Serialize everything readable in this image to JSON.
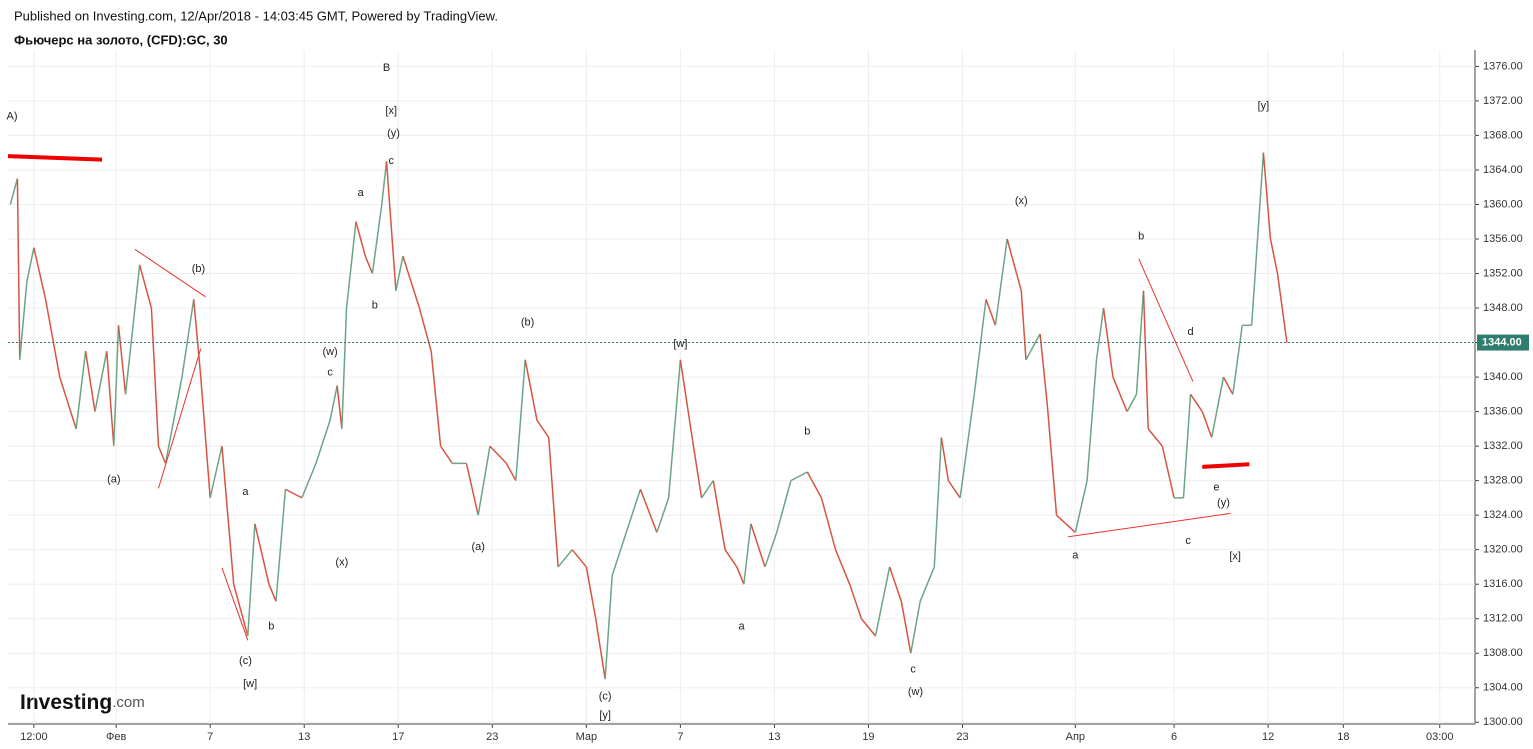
{
  "chart_data": {
    "type": "line",
    "published": "Published on Investing.com, 12/Apr/2018 - 14:03:45 GMT, Powered by TradingView.",
    "title": "Фьючерс на золото, (CFD):GC, 30",
    "logo": {
      "brand": "Investing",
      "suffix": ".com"
    },
    "up_color": "#6ba583",
    "down_color": "#d75442",
    "grid": true,
    "xlim": [
      -1.1,
      61.3
    ],
    "ylim": [
      1299.8,
      1377.9
    ],
    "xticks": [
      {
        "value": 0,
        "label": "12:00"
      },
      {
        "value": 3.5,
        "label": "Фев"
      },
      {
        "value": 7.5,
        "label": "7"
      },
      {
        "value": 11.5,
        "label": "13"
      },
      {
        "value": 15.5,
        "label": "17"
      },
      {
        "value": 19.5,
        "label": "23"
      },
      {
        "value": 23.5,
        "label": "Мар"
      },
      {
        "value": 27.5,
        "label": "7"
      },
      {
        "value": 31.5,
        "label": "13"
      },
      {
        "value": 35.5,
        "label": "19"
      },
      {
        "value": 39.5,
        "label": "23"
      },
      {
        "value": 44.3,
        "label": "Апр"
      },
      {
        "value": 48.5,
        "label": "6"
      },
      {
        "value": 52.5,
        "label": "12"
      },
      {
        "value": 55.7,
        "label": "18"
      },
      {
        "value": 59.8,
        "label": "03:00"
      }
    ],
    "yticks": [
      {
        "value": 1300,
        "label": "1300.00"
      },
      {
        "value": 1304,
        "label": "1304.00"
      },
      {
        "value": 1308,
        "label": "1308.00"
      },
      {
        "value": 1312,
        "label": "1312.00"
      },
      {
        "value": 1316,
        "label": "1316.00"
      },
      {
        "value": 1320,
        "label": "1320.00"
      },
      {
        "value": 1324,
        "label": "1324.00"
      },
      {
        "value": 1328,
        "label": "1328.00"
      },
      {
        "value": 1332,
        "label": "1332.00"
      },
      {
        "value": 1336,
        "label": "1336.00"
      },
      {
        "value": 1340,
        "label": "1340.00"
      },
      {
        "value": 1344,
        "label": "1344.00"
      },
      {
        "value": 1348,
        "label": "1348.00"
      },
      {
        "value": 1352,
        "label": "1352.00"
      },
      {
        "value": 1356,
        "label": "1356.00"
      },
      {
        "value": 1360,
        "label": "1360.00"
      },
      {
        "value": 1364,
        "label": "1364.00"
      },
      {
        "value": 1368,
        "label": "1368.00"
      },
      {
        "value": 1372,
        "label": "1372.00"
      },
      {
        "value": 1376,
        "label": "1376.00"
      }
    ],
    "last_price": {
      "value": 1344,
      "label": "1344.00",
      "color": "#2e7d6e"
    },
    "x": [
      -1.0,
      -0.7,
      -0.6,
      -0.3,
      0,
      0.5,
      1.1,
      1.8,
      2.2,
      2.6,
      3.1,
      3.4,
      3.6,
      3.9,
      4.5,
      5.0,
      5.3,
      5.6,
      6.3,
      6.8,
      7.1,
      7.5,
      8.0,
      8.5,
      9.1,
      9.4,
      10.0,
      10.3,
      10.7,
      11.4,
      12.0,
      12.6,
      12.9,
      13.1,
      13.3,
      13.7,
      14.1,
      14.4,
      14.8,
      15.0,
      15.4,
      15.7,
      16.4,
      16.9,
      17.3,
      17.8,
      18.4,
      18.9,
      19.4,
      20.1,
      20.5,
      20.9,
      21.4,
      21.9,
      22.3,
      22.9,
      23.5,
      23.9,
      24.3,
      24.6,
      25.2,
      25.8,
      26.5,
      27.0,
      27.5,
      28.0,
      28.4,
      28.9,
      29.4,
      29.9,
      30.2,
      30.5,
      31.1,
      31.6,
      32.2,
      32.9,
      33.5,
      34.1,
      34.7,
      35.2,
      35.8,
      36.4,
      36.9,
      37.3,
      37.7,
      38.3,
      38.6,
      38.9,
      39.4,
      40.0,
      40.5,
      40.9,
      41.4,
      41.8,
      42.0,
      42.2,
      42.8,
      43.1,
      43.5,
      43.9,
      44.3,
      44.8,
      45.2,
      45.5,
      45.9,
      46.5,
      46.9,
      47.2,
      47.4,
      48.0,
      48.5,
      48.9,
      49.2,
      49.7,
      50.1,
      50.6,
      51.0,
      51.4,
      51.8,
      52.3,
      52.6,
      52.9,
      53.3
    ],
    "values": [
      1360,
      1363,
      1342,
      1351,
      1355,
      1349,
      1340,
      1334,
      1343,
      1336,
      1343,
      1332,
      1346,
      1338,
      1353,
      1348,
      1332,
      1330,
      1340,
      1349,
      1340,
      1326,
      1332,
      1316,
      1310,
      1323,
      1316,
      1314,
      1327,
      1326,
      1330,
      1335,
      1339,
      1334,
      1348,
      1358,
      1354,
      1352,
      1360,
      1365,
      1350,
      1354,
      1348,
      1343,
      1332,
      1330,
      1330,
      1324,
      1332,
      1330,
      1328,
      1342,
      1335,
      1333,
      1318,
      1320,
      1318,
      1312,
      1305,
      1317,
      1322,
      1327,
      1322,
      1326,
      1342,
      1333,
      1326,
      1328,
      1320,
      1318,
      1316,
      1323,
      1318,
      1322,
      1328,
      1329,
      1326,
      1320,
      1316,
      1312,
      1310,
      1318,
      1314,
      1308,
      1314,
      1318,
      1333,
      1328,
      1326,
      1338,
      1349,
      1346,
      1356,
      1352,
      1350,
      1342,
      1345,
      1337,
      1324,
      1323,
      1322,
      1328,
      1342,
      1348,
      1340,
      1336,
      1338,
      1350,
      1334,
      1332,
      1326,
      1326,
      1338,
      1336,
      1333,
      1340,
      1338,
      1346,
      1346,
      1366,
      1356,
      1352,
      1344
    ],
    "annotations": [
      {
        "text": "A)",
        "x": -1.0,
        "y": 1370.2
      },
      {
        "text": "B",
        "x": 15.0,
        "y": 1375.8
      },
      {
        "text": "[x]",
        "x": 15.2,
        "y": 1370.8
      },
      {
        "text": "(y)",
        "x": 15.3,
        "y": 1368.2
      },
      {
        "text": "c",
        "x": 15.2,
        "y": 1365.0
      },
      {
        "text": "a",
        "x": 13.9,
        "y": 1361.3
      },
      {
        "text": "(b)",
        "x": 7.0,
        "y": 1352.5
      },
      {
        "text": "b",
        "x": 14.5,
        "y": 1348.3
      },
      {
        "text": "(w)",
        "x": 12.6,
        "y": 1342.9
      },
      {
        "text": "c",
        "x": 12.6,
        "y": 1340.5
      },
      {
        "text": "(x)",
        "x": 13.1,
        "y": 1318.5
      },
      {
        "text": "(a)",
        "x": 3.4,
        "y": 1328.1
      },
      {
        "text": "a",
        "x": 9.0,
        "y": 1326.7
      },
      {
        "text": "b",
        "x": 10.1,
        "y": 1311.1
      },
      {
        "text": "(c)",
        "x": 9.0,
        "y": 1307.1
      },
      {
        "text": "[w]",
        "x": 9.2,
        "y": 1304.4
      },
      {
        "text": "(b)",
        "x": 21.0,
        "y": 1346.3
      },
      {
        "text": "(a)",
        "x": 18.9,
        "y": 1320.3
      },
      {
        "text": "(c)",
        "x": 24.3,
        "y": 1303.0
      },
      {
        "text": "[y]",
        "x": 24.3,
        "y": 1300.8
      },
      {
        "text": "[w]",
        "x": 27.5,
        "y": 1343.8
      },
      {
        "text": "b",
        "x": 32.9,
        "y": 1333.7
      },
      {
        "text": "a",
        "x": 30.1,
        "y": 1311.1
      },
      {
        "text": "c",
        "x": 37.4,
        "y": 1306.1
      },
      {
        "text": "(w)",
        "x": 37.5,
        "y": 1303.5
      },
      {
        "text": "(x)",
        "x": 42.0,
        "y": 1360.4
      },
      {
        "text": "b",
        "x": 47.1,
        "y": 1356.3
      },
      {
        "text": "d",
        "x": 49.2,
        "y": 1345.2
      },
      {
        "text": "a",
        "x": 44.3,
        "y": 1319.3
      },
      {
        "text": "e",
        "x": 50.3,
        "y": 1327.2
      },
      {
        "text": "(y)",
        "x": 50.6,
        "y": 1325.4
      },
      {
        "text": "c",
        "x": 49.1,
        "y": 1321.0
      },
      {
        "text": "[x]",
        "x": 51.1,
        "y": 1319.2
      },
      {
        "text": "[y]",
        "x": 52.3,
        "y": 1371.4
      }
    ],
    "trendlines": [
      {
        "x": [
          4.3,
          7.3
        ],
        "y": [
          1354.8,
          1349.3
        ],
        "width": 1,
        "color": "#e8332a"
      },
      {
        "x": [
          5.3,
          7.1
        ],
        "y": [
          1327.1,
          1343.3
        ],
        "width": 1,
        "color": "#e8332a"
      },
      {
        "x": [
          8.0,
          9.1
        ],
        "y": [
          1317.9,
          1309.5
        ],
        "width": 1,
        "color": "#e8332a"
      },
      {
        "x": [
          44.0,
          50.9
        ],
        "y": [
          1321.5,
          1324.2
        ],
        "width": 1,
        "color": "#e8332a"
      },
      {
        "x": [
          47.0,
          49.3
        ],
        "y": [
          1353.7,
          1339.5
        ],
        "width": 1,
        "color": "#e8332a"
      },
      {
        "x": [
          -1.1,
          2.9
        ],
        "y": [
          1365.6,
          1365.2
        ],
        "width": 4,
        "color": "#f00000"
      },
      {
        "x": [
          49.7,
          51.7
        ],
        "y": [
          1329.6,
          1329.9
        ],
        "width": 4,
        "color": "#f00000"
      }
    ]
  }
}
